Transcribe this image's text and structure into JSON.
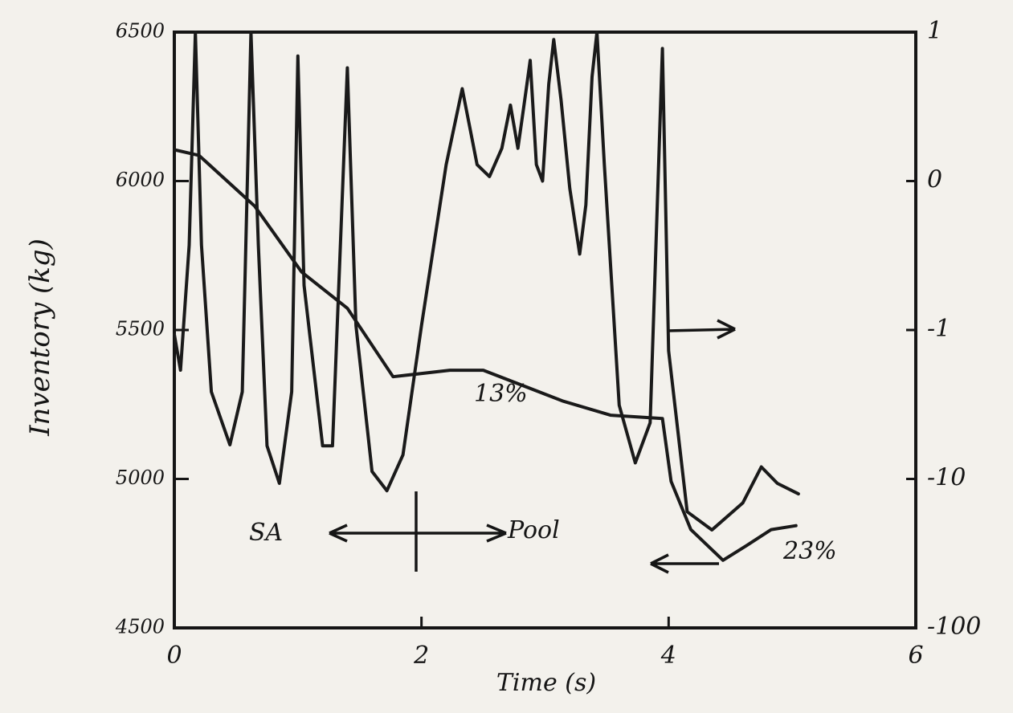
{
  "chart_data": {
    "type": "line",
    "xlabel": "Time (s)",
    "ylabel": "Inventory (kg)",
    "xlim": [
      0,
      6
    ],
    "xticks": [
      0,
      2,
      4,
      6
    ],
    "ylim": [
      4500,
      6500
    ],
    "yticks": [
      4500,
      5000,
      5500,
      6000,
      6500
    ],
    "y2lim": [
      -100,
      1
    ],
    "y2ticks": [
      -100,
      -10,
      -1,
      0,
      1
    ],
    "y2scale": "symlog",
    "grid": false,
    "series": [
      {
        "color": "#1a1a1a",
        "x": [
          0,
          0.2,
          0.65,
          1.03,
          1.4,
          1.77,
          2.23,
          2.5,
          3.14,
          3.53,
          3.95,
          4.02,
          4.18,
          4.44,
          4.63,
          4.83,
          5.03
        ],
        "values": [
          6105,
          6086,
          5916,
          5695,
          5573,
          5343,
          5365,
          5365,
          5262,
          5214,
          5203,
          4992,
          4830,
          4727,
          4776,
          4830,
          4843
        ]
      },
      {
        "color": "#1a1a1a",
        "axis": "y2",
        "x": [
          0,
          0.05,
          0.12,
          0.17,
          0.22,
          0.3,
          0.45,
          0.55,
          0.62,
          0.68,
          0.75,
          0.85,
          0.95,
          1.0,
          1.05,
          1.2,
          1.28,
          1.4,
          1.47,
          1.6,
          1.72,
          1.85,
          2.0,
          2.2,
          2.33,
          2.45,
          2.55,
          2.65,
          2.72,
          2.78,
          2.83,
          2.88,
          2.93,
          2.98,
          3.03,
          3.07,
          3.13,
          3.2,
          3.28,
          3.33,
          3.38,
          3.42,
          3.48,
          3.6,
          3.73,
          3.85,
          3.95,
          4.0,
          4.15,
          4.35,
          4.6,
          4.75,
          4.88,
          5.05
        ],
        "values": [
          -1.07,
          -1.86,
          -0.43,
          1,
          -0.43,
          -2.6,
          -5.9,
          -2.6,
          1,
          -0.43,
          -6,
          -10.7,
          -2.6,
          0.84,
          -0.7,
          -6,
          -6,
          0.76,
          -0.97,
          -8.9,
          -12,
          -6.9,
          -0.97,
          0.11,
          0.62,
          0.11,
          0.03,
          0.22,
          0.51,
          0.22,
          0.51,
          0.81,
          0.11,
          0,
          0.65,
          0.95,
          0.54,
          -0.05,
          -0.49,
          -0.16,
          0.7,
          1,
          0.11,
          -3.2,
          -7.8,
          -4.2,
          0.89,
          -1.38,
          -16.6,
          -22,
          -14.5,
          -8.3,
          -10.7,
          -12.6
        ]
      }
    ],
    "annotations": [
      "13%",
      "23%",
      "SA",
      "Pool"
    ]
  }
}
